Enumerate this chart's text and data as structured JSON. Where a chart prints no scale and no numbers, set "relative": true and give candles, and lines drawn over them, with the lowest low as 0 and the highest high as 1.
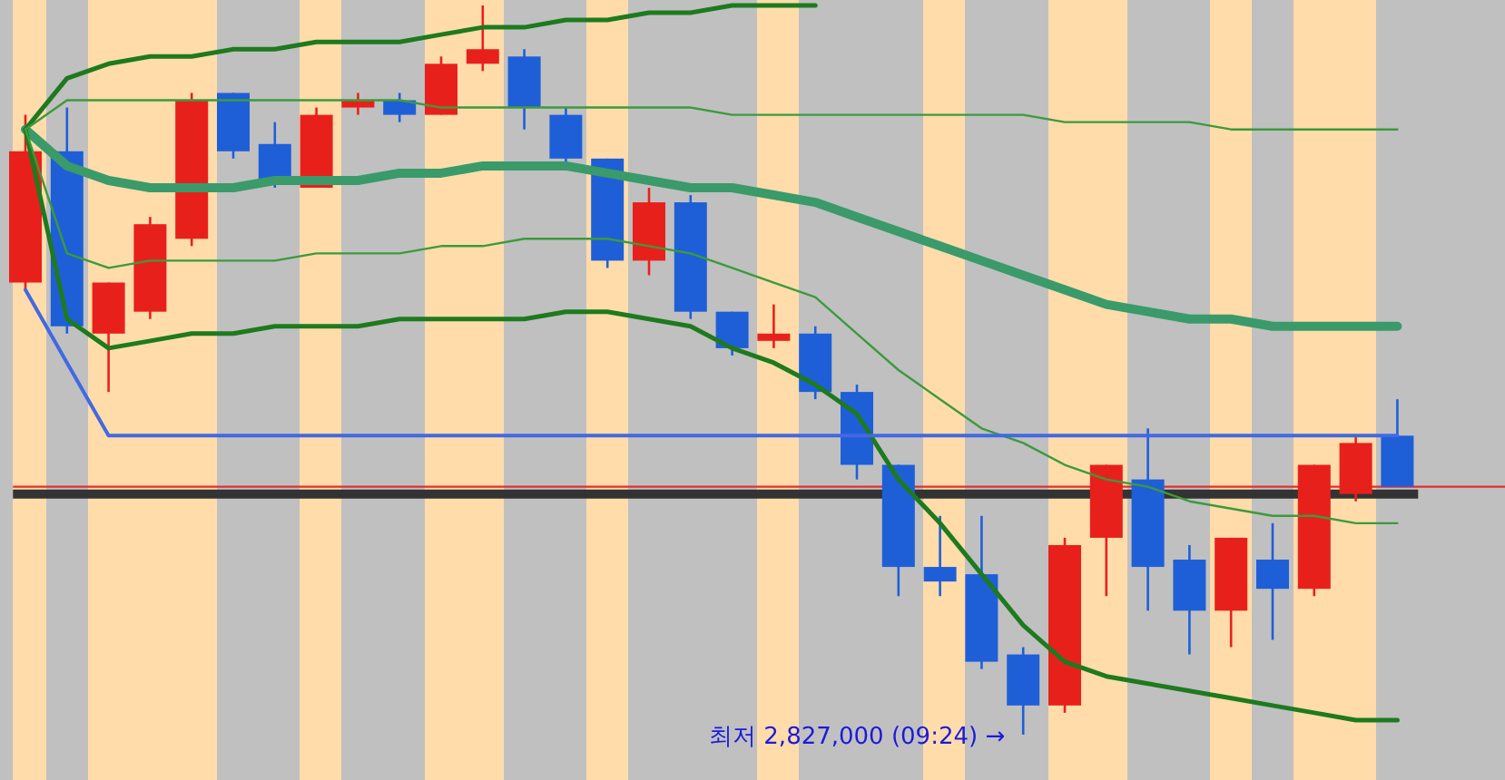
{
  "chart_data": {
    "type": "candlestick",
    "relative": true,
    "categories": [
      null,
      null,
      null,
      null,
      null,
      null,
      null,
      null,
      null,
      null,
      null,
      null,
      null,
      null,
      null,
      null,
      null,
      null,
      null,
      null,
      null,
      null,
      null,
      null,
      null,
      null,
      null,
      null,
      null,
      null,
      null,
      null,
      null,
      null
    ],
    "ohlc": [
      [
        0.62,
        0.85,
        0.61,
        0.8
      ],
      [
        0.8,
        0.86,
        0.55,
        0.56
      ],
      [
        0.55,
        0.62,
        0.47,
        0.62
      ],
      [
        0.58,
        0.71,
        0.57,
        0.7
      ],
      [
        0.68,
        0.88,
        0.67,
        0.87
      ],
      [
        0.88,
        0.88,
        0.79,
        0.8
      ],
      [
        0.81,
        0.84,
        0.75,
        0.76
      ],
      [
        0.75,
        0.86,
        0.75,
        0.85
      ],
      [
        0.86,
        0.88,
        0.85,
        0.87
      ],
      [
        0.87,
        0.88,
        0.84,
        0.85
      ],
      [
        0.85,
        0.93,
        0.85,
        0.92
      ],
      [
        0.92,
        1,
        0.91,
        0.94
      ],
      [
        0.93,
        0.94,
        0.83,
        0.86
      ],
      [
        0.85,
        0.86,
        0.78,
        0.79
      ],
      [
        0.79,
        0.79,
        0.64,
        0.65
      ],
      [
        0.65,
        0.75,
        0.63,
        0.73
      ],
      [
        0.73,
        0.74,
        0.57,
        0.58
      ],
      [
        0.58,
        0.58,
        0.52,
        0.53
      ],
      [
        0.54,
        0.59,
        0.53,
        0.55
      ],
      [
        0.55,
        0.56,
        0.46,
        0.47
      ],
      [
        0.47,
        0.48,
        0.35,
        0.37
      ],
      [
        0.37,
        0.37,
        0.19,
        0.23
      ],
      [
        0.23,
        0.3,
        0.19,
        0.21
      ],
      [
        0.22,
        0.3,
        0.09,
        0.1
      ],
      [
        0.11,
        0.12,
        0,
        0.04
      ],
      [
        0.04,
        0.27,
        0.03,
        0.26
      ],
      [
        0.27,
        0.37,
        0.19,
        0.37
      ],
      [
        0.35,
        0.42,
        0.17,
        0.23
      ],
      [
        0.24,
        0.26,
        0.11,
        0.17
      ],
      [
        0.17,
        0.27,
        0.12,
        0.27
      ],
      [
        0.24,
        0.29,
        0.13,
        0.2
      ],
      [
        0.2,
        0.37,
        0.19,
        0.37
      ],
      [
        0.33,
        0.41,
        0.32,
        0.4
      ],
      [
        0.41,
        0.46,
        0.34,
        0.34
      ]
    ],
    "colors": [
      "#e8201c",
      "#1e5fd8",
      "#e8201c",
      "#e8201c",
      "#e8201c",
      "#1e5fd8",
      "#1e5fd8",
      "#e8201c",
      "#e8201c",
      "#1e5fd8",
      "#e8201c",
      "#e8201c",
      "#1e5fd8",
      "#1e5fd8",
      "#1e5fd8",
      "#e8201c",
      "#1e5fd8",
      "#1e5fd8",
      "#e8201c",
      "#1e5fd8",
      "#1e5fd8",
      "#1e5fd8",
      "#1e5fd8",
      "#1e5fd8",
      "#1e5fd8",
      "#e8201c",
      "#e8201c",
      "#1e5fd8",
      "#1e5fd8",
      "#e8201c",
      "#1e5fd8",
      "#e8201c",
      "#e8201c",
      "#1e5fd8"
    ],
    "series": [
      {
        "type": "line",
        "color": "#3a9a6a",
        "values": [
          0.83,
          0.78,
          0.76,
          0.75,
          0.75,
          0.75,
          0.76,
          0.76,
          0.76,
          0.77,
          0.77,
          0.78,
          0.78,
          0.78,
          0.77,
          0.76,
          0.75,
          0.75,
          0.74,
          0.73,
          0.71,
          0.69,
          0.67,
          0.65,
          0.63,
          0.61,
          0.59,
          0.58,
          0.57,
          0.57,
          0.56,
          0.56,
          0.56,
          0.56
        ]
      },
      {
        "type": "line",
        "color": "#1e7a1e",
        "values": [
          0.83,
          0.9,
          0.92,
          0.93,
          0.93,
          0.94,
          0.94,
          0.95,
          0.95,
          0.95,
          0.96,
          0.97,
          0.97,
          0.98,
          0.98,
          0.99,
          0.99,
          1.0,
          1.0,
          1.0,
          null,
          null,
          null,
          null,
          null,
          null,
          null,
          null,
          null,
          null,
          null,
          null,
          null,
          null
        ]
      },
      {
        "type": "line",
        "color": "#1e7a1e",
        "values": [
          0.83,
          0.57,
          0.53,
          0.54,
          0.55,
          0.55,
          0.56,
          0.56,
          0.56,
          0.57,
          0.57,
          0.57,
          0.57,
          0.58,
          0.58,
          0.57,
          0.56,
          0.53,
          0.51,
          0.48,
          0.44,
          0.35,
          0.29,
          0.22,
          0.15,
          0.1,
          0.08,
          0.07,
          0.06,
          0.05,
          0.04,
          0.03,
          0.02,
          0.02
        ]
      },
      {
        "type": "line",
        "color": "#3c9a3c",
        "values": [
          0.83,
          0.87,
          0.87,
          0.87,
          0.87,
          0.87,
          0.87,
          0.87,
          0.87,
          0.87,
          0.86,
          0.86,
          0.86,
          0.86,
          0.86,
          0.86,
          0.86,
          0.85,
          0.85,
          0.85,
          0.85,
          0.85,
          0.85,
          0.85,
          0.85,
          0.84,
          0.84,
          0.84,
          0.84,
          0.83,
          0.83,
          0.83,
          0.83,
          0.83
        ]
      },
      {
        "type": "line",
        "color": "#3c9a3c",
        "values": [
          0.83,
          0.66,
          0.64,
          0.65,
          0.65,
          0.65,
          0.65,
          0.66,
          0.66,
          0.66,
          0.67,
          0.67,
          0.68,
          0.68,
          0.68,
          0.67,
          0.66,
          0.64,
          0.62,
          0.6,
          0.55,
          0.5,
          0.46,
          0.42,
          0.4,
          0.37,
          0.35,
          0.34,
          0.32,
          0.31,
          0.3,
          0.3,
          0.29,
          0.29
        ]
      },
      {
        "type": "line",
        "color": "#4169e1",
        "values": [
          0.61,
          0.51,
          0.41,
          0.41,
          0.41,
          0.41,
          0.41,
          0.41,
          0.41,
          0.41,
          0.41,
          0.41,
          0.41,
          0.41,
          0.41,
          0.41,
          0.41,
          0.41,
          0.41,
          0.41,
          0.41,
          0.41,
          0.41,
          0.41,
          0.41,
          0.41,
          0.41,
          0.41,
          0.41,
          0.41,
          0.41,
          0.41,
          0.41,
          0.41
        ]
      }
    ],
    "ref_lines": [
      {
        "axis": "y",
        "value": 0.34,
        "color": "#e03030"
      },
      {
        "axis": "y",
        "value": 0.33,
        "color": "#333333"
      }
    ],
    "annotations": [
      "최저 2,827,000 (09:24) →"
    ]
  }
}
